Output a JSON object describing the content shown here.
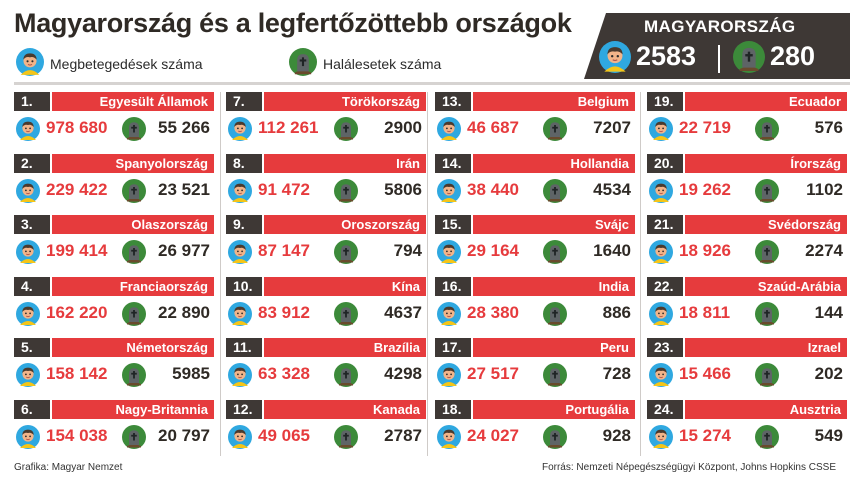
{
  "title": "Magyarország és a legfertőzöttebb országok",
  "legend": {
    "cases_label": "Megbetegedések száma",
    "deaths_label": "Halálesetek száma",
    "cases_icon": "person-icon",
    "deaths_icon": "tombstone-icon"
  },
  "hungary": {
    "name": "MAGYARORSZÁG",
    "cases": "2583",
    "deaths": "280"
  },
  "colors": {
    "accent_red": "#e63b3d",
    "dark_brown": "#3e3835",
    "face_blue": "#2fa8e0",
    "face_skin": "#f2b489",
    "stone_green": "#3c8a3a"
  },
  "countries": [
    {
      "rank": "1.",
      "name": "Egyesült Államok",
      "cases": "978 680",
      "deaths": "55 266"
    },
    {
      "rank": "2.",
      "name": "Spanyolország",
      "cases": "229 422",
      "deaths": "23 521"
    },
    {
      "rank": "3.",
      "name": "Olaszország",
      "cases": "199 414",
      "deaths": "26 977"
    },
    {
      "rank": "4.",
      "name": "Franciaország",
      "cases": "162 220",
      "deaths": "22 890"
    },
    {
      "rank": "5.",
      "name": "Németország",
      "cases": "158 142",
      "deaths": "5985"
    },
    {
      "rank": "6.",
      "name": "Nagy-Britannia",
      "cases": "154 038",
      "deaths": "20 797"
    },
    {
      "rank": "7.",
      "name": "Törökország",
      "cases": "112 261",
      "deaths": "2900"
    },
    {
      "rank": "8.",
      "name": "Irán",
      "cases": "91 472",
      "deaths": "5806"
    },
    {
      "rank": "9.",
      "name": "Oroszország",
      "cases": "87 147",
      "deaths": "794"
    },
    {
      "rank": "10.",
      "name": "Kína",
      "cases": "83 912",
      "deaths": "4637"
    },
    {
      "rank": "11.",
      "name": "Brazília",
      "cases": "63 328",
      "deaths": "4298"
    },
    {
      "rank": "12.",
      "name": "Kanada",
      "cases": "49 065",
      "deaths": "2787"
    },
    {
      "rank": "13.",
      "name": "Belgium",
      "cases": "46 687",
      "deaths": "7207"
    },
    {
      "rank": "14.",
      "name": "Hollandia",
      "cases": "38 440",
      "deaths": "4534"
    },
    {
      "rank": "15.",
      "name": "Svájc",
      "cases": "29 164",
      "deaths": "1640"
    },
    {
      "rank": "16.",
      "name": "India",
      "cases": "28 380",
      "deaths": "886"
    },
    {
      "rank": "17.",
      "name": "Peru",
      "cases": "27 517",
      "deaths": "728"
    },
    {
      "rank": "18.",
      "name": "Portugália",
      "cases": "24 027",
      "deaths": "928"
    },
    {
      "rank": "19.",
      "name": "Ecuador",
      "cases": "22 719",
      "deaths": "576"
    },
    {
      "rank": "20.",
      "name": "Írország",
      "cases": "19 262",
      "deaths": "1102"
    },
    {
      "rank": "21.",
      "name": "Svédország",
      "cases": "18 926",
      "deaths": "2274"
    },
    {
      "rank": "22.",
      "name": "Szaúd-Arábia",
      "cases": "18 811",
      "deaths": "144"
    },
    {
      "rank": "23.",
      "name": "Izrael",
      "cases": "15 466",
      "deaths": "202"
    },
    {
      "rank": "24.",
      "name": "Ausztria",
      "cases": "15 274",
      "deaths": "549"
    }
  ],
  "footer": {
    "credit": "Grafika: Magyar Nemzet",
    "source": "Forrás: Nemzeti Népegészségügyi Központ, Johns Hopkins CSSE"
  }
}
